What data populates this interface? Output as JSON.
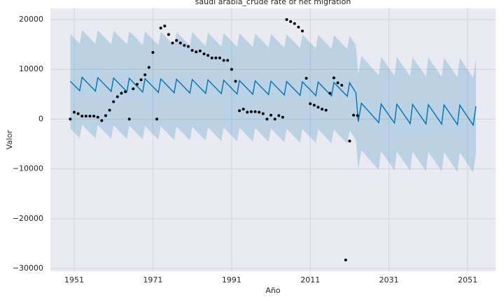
{
  "chart_data": {
    "type": "forecast",
    "title": "saudi arabia_crude rate of net migration",
    "x_label": "Año",
    "y_label": "Valor",
    "xlim": [
      1944.95,
      2058.1
    ],
    "ylim": [
      -30560,
      22250
    ],
    "xticks": [
      1951,
      1971,
      1991,
      2011,
      2031,
      2051
    ],
    "yticks": [
      {
        "value": -30000,
        "label": "−30000"
      },
      {
        "value": -20000,
        "label": "−20000"
      },
      {
        "value": -10000,
        "label": "−10000"
      },
      0,
      10000,
      20000
    ],
    "grid": true,
    "background": "#eaeaf2",
    "grid_color": "#d3d3dc",
    "observed": {
      "color": "#000000",
      "x": [
        1950,
        1951,
        1952,
        1953,
        1954,
        1955,
        1956,
        1957,
        1958,
        1959,
        1960,
        1961,
        1962,
        1963,
        1964,
        1965,
        1966,
        1967,
        1968,
        1969,
        1970,
        1971,
        1972,
        1973,
        1974,
        1975,
        1976,
        1977,
        1978,
        1979,
        1980,
        1981,
        1982,
        1983,
        1984,
        1985,
        1986,
        1987,
        1988,
        1989,
        1990,
        1991,
        1992,
        1993,
        1994,
        1995,
        1996,
        1997,
        1998,
        1999,
        2000,
        2001,
        2002,
        2003,
        2004,
        2005,
        2006,
        2007,
        2008,
        2009,
        2010,
        2011,
        2012,
        2013,
        2014,
        2015,
        2016,
        2017,
        2018,
        2019,
        2020,
        2021,
        2022,
        2023
      ],
      "values": [
        0,
        1400,
        1100,
        600,
        600,
        600,
        600,
        400,
        -300,
        700,
        1800,
        3500,
        4500,
        5200,
        5500,
        0,
        6100,
        7000,
        7900,
        8900,
        10400,
        13400,
        0,
        18300,
        18700,
        17000,
        15300,
        15800,
        15300,
        14800,
        14600,
        13800,
        13500,
        13700,
        13100,
        12800,
        12300,
        12300,
        12300,
        11800,
        11800,
        10000,
        7600,
        1700,
        2000,
        1400,
        1500,
        1500,
        1400,
        1100,
        0,
        800,
        0,
        700,
        400,
        20000,
        19600,
        19200,
        18500,
        17700,
        8200,
        3100,
        2800,
        2400,
        2000,
        1800,
        5200,
        8300,
        7300,
        6800,
        -28300,
        -4400,
        800,
        700
      ]
    },
    "forecast": {
      "color": "#0072b2",
      "x": [
        1950,
        1952.4,
        1953,
        1956.4,
        1957,
        1960.4,
        1961,
        1964.4,
        1965,
        1968.4,
        1969,
        1972.4,
        1973,
        1976.4,
        1977,
        1980.4,
        1981,
        1984.4,
        1985,
        1988.4,
        1989,
        1992.4,
        1993,
        1996.4,
        1997,
        2000.4,
        2001,
        2004.4,
        2005,
        2008.4,
        2009,
        2012.4,
        2013,
        2016.4,
        2017,
        2020.4,
        2021,
        2022.6,
        2023.2,
        2024,
        2028.4,
        2029,
        2032.4,
        2033,
        2036.4,
        2037,
        2040.4,
        2041,
        2044.4,
        2045,
        2048.4,
        2049,
        2052.4,
        2053.1
      ],
      "values": [
        7600,
        5700,
        8400,
        5640,
        8340,
        5570,
        8270,
        5510,
        8210,
        5440,
        8140,
        5380,
        8080,
        5310,
        8010,
        5250,
        7950,
        5180,
        7880,
        5120,
        7820,
        5050,
        7750,
        4990,
        7690,
        4920,
        7620,
        4860,
        7560,
        4790,
        7490,
        4730,
        7430,
        4660,
        7360,
        4600,
        7300,
        5300,
        -500,
        3200,
        -700,
        3050,
        -800,
        3000,
        -900,
        2950,
        -950,
        2900,
        -1000,
        2850,
        -1100,
        2800,
        -1200,
        2600
      ],
      "upper": [
        17100,
        15200,
        17900,
        15140,
        17840,
        15070,
        17770,
        15010,
        17710,
        14940,
        17640,
        14880,
        17580,
        14810,
        17510,
        14750,
        17450,
        14680,
        17380,
        14620,
        17320,
        14550,
        17250,
        14490,
        17190,
        14420,
        17120,
        14360,
        17060,
        14290,
        16990,
        14230,
        16930,
        14160,
        16860,
        14100,
        16800,
        14800,
        9000,
        12700,
        8800,
        12550,
        8700,
        12500,
        8600,
        12450,
        8550,
        12400,
        8500,
        12350,
        8400,
        12300,
        8300,
        12100
      ],
      "lower": [
        -1900,
        -3800,
        -1100,
        -3860,
        -1160,
        -3930,
        -1230,
        -3990,
        -1290,
        -4060,
        -1360,
        -4120,
        -1420,
        -4190,
        -1490,
        -4250,
        -1550,
        -4320,
        -1620,
        -4380,
        -1680,
        -4450,
        -1750,
        -4510,
        -1810,
        -4580,
        -1880,
        -4640,
        -1940,
        -4710,
        -2010,
        -4770,
        -2070,
        -4840,
        -2140,
        -4900,
        -2200,
        -4200,
        -10000,
        -6300,
        -10200,
        -6450,
        -10300,
        -6500,
        -10400,
        -6550,
        -10450,
        -6600,
        -10500,
        -6650,
        -10600,
        -6700,
        -10700,
        -6900
      ]
    }
  }
}
